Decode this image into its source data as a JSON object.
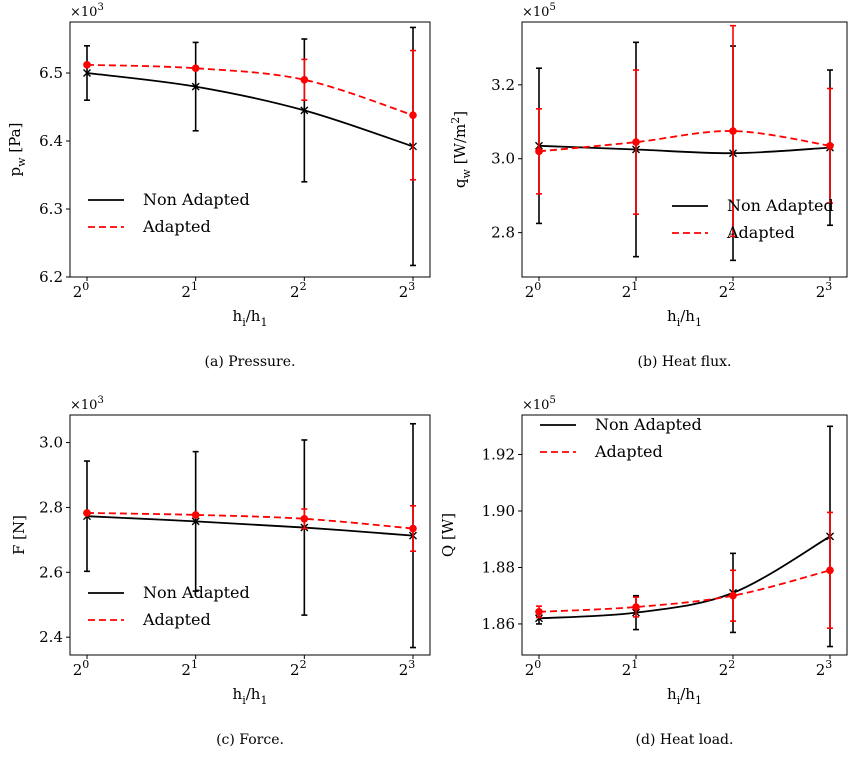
{
  "legend": {
    "non_adapted": "Non Adapted",
    "adapted": "Adapted"
  },
  "colors": {
    "non_adapted": "#000000",
    "adapted": "#ff0000"
  },
  "chart_data": [
    {
      "type": "line",
      "caption": "(a) Pressure.",
      "xlabel": "h_i/h_1",
      "ylabel": "p_w [Pa]",
      "multiplier": "×10^3",
      "x": [
        1,
        2,
        4,
        8
      ],
      "x_tick_labels": [
        {
          "base": "2",
          "exp": "0"
        },
        {
          "base": "2",
          "exp": "1"
        },
        {
          "base": "2",
          "exp": "2"
        },
        {
          "base": "2",
          "exp": "3"
        }
      ],
      "xscale": "log2",
      "ylim": [
        6.2,
        6.575
      ],
      "y_ticks": [
        6.2,
        6.3,
        6.4,
        6.5
      ],
      "y_tick_labels": [
        "6.2",
        "6.3",
        "6.4",
        "6.5"
      ],
      "legend_position": "lower-left",
      "series": [
        {
          "name": "Non Adapted",
          "style": "solid-x",
          "values": [
            6.5,
            6.48,
            6.445,
            6.392
          ],
          "error": [
            0.04,
            0.065,
            0.105,
            0.175
          ]
        },
        {
          "name": "Adapted",
          "style": "dashed-dot",
          "values": [
            6.512,
            6.507,
            6.49,
            6.438
          ],
          "error": [
            0.0,
            0.0,
            0.03,
            0.095
          ]
        }
      ]
    },
    {
      "type": "line",
      "caption": "(b) Heat flux.",
      "xlabel": "h_i/h_1",
      "ylabel": "q_w [W/m^2]",
      "multiplier": "×10^5",
      "x": [
        1,
        2,
        4,
        8
      ],
      "x_tick_labels": [
        {
          "base": "2",
          "exp": "0"
        },
        {
          "base": "2",
          "exp": "1"
        },
        {
          "base": "2",
          "exp": "2"
        },
        {
          "base": "2",
          "exp": "3"
        }
      ],
      "xscale": "log2",
      "ylim": [
        2.68,
        3.37
      ],
      "y_ticks": [
        2.8,
        3.0,
        3.2
      ],
      "y_tick_labels": [
        "2.8",
        "3.0",
        "3.2"
      ],
      "legend_position": "lower-right",
      "series": [
        {
          "name": "Non Adapted",
          "style": "solid-x",
          "values": [
            3.035,
            3.025,
            3.015,
            3.03
          ],
          "error": [
            0.21,
            0.29,
            0.29,
            0.21
          ]
        },
        {
          "name": "Adapted",
          "style": "dashed-dot",
          "values": [
            3.02,
            3.045,
            3.075,
            3.035
          ],
          "error": [
            0.115,
            0.195,
            0.285,
            0.155
          ]
        }
      ]
    },
    {
      "type": "line",
      "caption": "(c) Force.",
      "xlabel": "h_i/h_1",
      "ylabel": "F [N]",
      "multiplier": "×10^3",
      "x": [
        1,
        2,
        4,
        8
      ],
      "x_tick_labels": [
        {
          "base": "2",
          "exp": "0"
        },
        {
          "base": "2",
          "exp": "1"
        },
        {
          "base": "2",
          "exp": "2"
        },
        {
          "base": "2",
          "exp": "3"
        }
      ],
      "xscale": "log2",
      "ylim": [
        2.345,
        3.085
      ],
      "y_ticks": [
        2.4,
        2.6,
        2.8,
        3.0
      ],
      "y_tick_labels": [
        "2.4",
        "2.6",
        "2.8",
        "3.0"
      ],
      "legend_position": "lower-left",
      "series": [
        {
          "name": "Non Adapted",
          "style": "solid-x",
          "values": [
            2.773,
            2.757,
            2.738,
            2.713
          ],
          "error": [
            0.17,
            0.215,
            0.27,
            0.345
          ]
        },
        {
          "name": "Adapted",
          "style": "dashed-dot",
          "values": [
            2.783,
            2.777,
            2.765,
            2.735
          ],
          "error": [
            0.0,
            0.0,
            0.03,
            0.07
          ]
        }
      ]
    },
    {
      "type": "line",
      "caption": "(d) Heat load.",
      "xlabel": "h_i/h_1",
      "ylabel": "Q [W]",
      "multiplier": "×10^5",
      "x": [
        1,
        2,
        4,
        8
      ],
      "x_tick_labels": [
        {
          "base": "2",
          "exp": "0"
        },
        {
          "base": "2",
          "exp": "1"
        },
        {
          "base": "2",
          "exp": "2"
        },
        {
          "base": "2",
          "exp": "3"
        }
      ],
      "xscale": "log2",
      "ylim": [
        1.849,
        1.934
      ],
      "y_ticks": [
        1.86,
        1.88,
        1.9,
        1.92
      ],
      "y_tick_labels": [
        "1.86",
        "1.88",
        "1.90",
        "1.92"
      ],
      "legend_position": "upper-left",
      "series": [
        {
          "name": "Non Adapted",
          "style": "solid-x",
          "values": [
            1.862,
            1.864,
            1.871,
            1.891
          ],
          "error": [
            0.002,
            0.006,
            0.014,
            0.039
          ]
        },
        {
          "name": "Adapted",
          "style": "dashed-dot",
          "values": [
            1.8643,
            1.866,
            1.87,
            1.879
          ],
          "error": [
            0.002,
            0.0035,
            0.009,
            0.0205
          ]
        }
      ]
    }
  ]
}
